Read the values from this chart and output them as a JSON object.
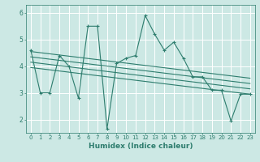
{
  "title": "",
  "xlabel": "Humidex (Indice chaleur)",
  "xlim": [
    -0.5,
    23.5
  ],
  "ylim": [
    1.5,
    6.3
  ],
  "yticks": [
    2,
    3,
    4,
    5,
    6
  ],
  "xticks": [
    0,
    1,
    2,
    3,
    4,
    5,
    6,
    7,
    8,
    9,
    10,
    11,
    12,
    13,
    14,
    15,
    16,
    17,
    18,
    19,
    20,
    21,
    22,
    23
  ],
  "bg_color": "#cce8e4",
  "grid_color": "#ffffff",
  "line_color": "#2e7d6e",
  "series": [
    [
      0,
      4.6
    ],
    [
      1,
      3.0
    ],
    [
      2,
      3.0
    ],
    [
      3,
      4.4
    ],
    [
      4,
      4.0
    ],
    [
      5,
      2.8
    ],
    [
      6,
      5.5
    ],
    [
      7,
      5.5
    ],
    [
      8,
      1.65
    ],
    [
      9,
      4.1
    ],
    [
      10,
      4.3
    ],
    [
      11,
      4.4
    ],
    [
      12,
      5.9
    ],
    [
      13,
      5.2
    ],
    [
      14,
      4.6
    ],
    [
      15,
      4.9
    ],
    [
      16,
      4.3
    ],
    [
      17,
      3.6
    ],
    [
      18,
      3.6
    ],
    [
      19,
      3.1
    ],
    [
      20,
      3.1
    ],
    [
      21,
      1.95
    ],
    [
      22,
      2.95
    ],
    [
      23,
      2.95
    ]
  ],
  "trend_lines": [
    {
      "x": [
        0,
        23
      ],
      "y": [
        4.55,
        3.55
      ]
    },
    {
      "x": [
        0,
        23
      ],
      "y": [
        4.35,
        3.35
      ]
    },
    {
      "x": [
        0,
        23
      ],
      "y": [
        4.15,
        3.15
      ]
    },
    {
      "x": [
        0,
        23
      ],
      "y": [
        3.95,
        2.95
      ]
    }
  ],
  "label_fontsize": 5.5,
  "xlabel_fontsize": 6.5,
  "tick_fontsize": 5.0
}
